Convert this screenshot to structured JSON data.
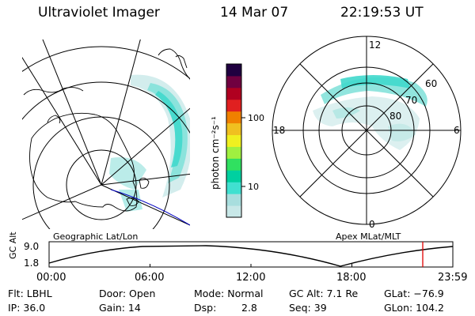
{
  "header": {
    "instrument": "Ultraviolet Imager",
    "date": "14 Mar 07",
    "time": "22:19:53 UT"
  },
  "left_map": {
    "label": "Geographic Lat/Lon"
  },
  "right_map": {
    "label": "Apex  MLat/MLT",
    "mlt_labels": [
      "12",
      "18",
      "6",
      "0"
    ],
    "mlat_labels": [
      "60",
      "70",
      "80"
    ]
  },
  "colorbar": {
    "unit": "photon cm⁻²s⁻¹",
    "ticks": [
      "100",
      "10"
    ],
    "colors": [
      "#c8e8e8",
      "#a8dede",
      "#40e0d0",
      "#00d0a0",
      "#30e060",
      "#a0f040",
      "#f0f020",
      "#f0c020",
      "#f08000",
      "#e02020",
      "#b00020",
      "#700040",
      "#200040"
    ]
  },
  "timeline": {
    "ylabel": "GC Alt",
    "y_ticks": [
      "9.0",
      "1.8"
    ],
    "x_ticks": [
      "00:00",
      "06:00",
      "12:00",
      "18:00",
      "23:59"
    ],
    "current_marker_color": "#e00000"
  },
  "info": {
    "flt": "Flt: LBHL",
    "ip": "IP: 36.0",
    "door": "Door: Open",
    "gain": "Gain: 14",
    "mode": "Mode: Normal",
    "dsp_label": "Dsp:",
    "dsp_value": "2.8",
    "gcalt": "GC Alt: 7.1 Re",
    "seq": "Seq: 39",
    "glat": "GLat: −76.9",
    "glon": "GLon: 104.2"
  }
}
